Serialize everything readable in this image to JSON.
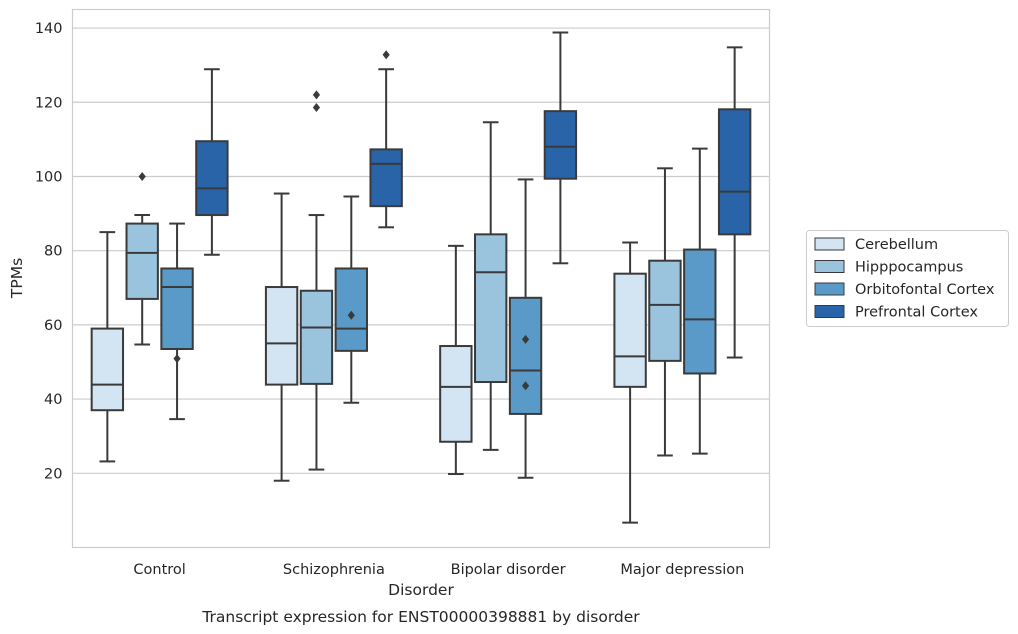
{
  "chart_data": {
    "type": "box",
    "caption": "Transcript expression for ENST00000398881 by disorder",
    "xlabel": "Disorder",
    "ylabel": "TPMs",
    "ylim": [
      0,
      145
    ],
    "yticks": [
      20,
      40,
      60,
      80,
      100,
      120,
      140
    ],
    "grid": "horizontal",
    "legend_placement": "right-center",
    "categories": [
      "Control",
      "Schizophrenia",
      "Bipolar disorder",
      "Major depression"
    ],
    "series": [
      {
        "name": "Cerebellum",
        "color": "#d3e4f3",
        "boxes": [
          {
            "whisker_low": 23.2,
            "q1": 37.0,
            "median": 43.9,
            "q3": 59.0,
            "whisker_high": 85.0,
            "outliers": []
          },
          {
            "whisker_low": 18.0,
            "q1": 43.9,
            "median": 55.0,
            "q3": 70.2,
            "whisker_high": 95.4,
            "outliers": []
          },
          {
            "whisker_low": 19.8,
            "q1": 28.5,
            "median": 43.3,
            "q3": 54.3,
            "whisker_high": 81.3,
            "outliers": []
          },
          {
            "whisker_low": 6.7,
            "q1": 43.3,
            "median": 51.5,
            "q3": 73.8,
            "whisker_high": 82.2,
            "outliers": []
          }
        ]
      },
      {
        "name": "Hipppocampus",
        "color": "#9ac4de",
        "boxes": [
          {
            "whisker_low": 54.7,
            "q1": 67.0,
            "median": 79.4,
            "q3": 87.3,
            "whisker_high": 89.6,
            "outliers": [
              100.0
            ]
          },
          {
            "whisker_low": 21.0,
            "q1": 44.1,
            "median": 59.3,
            "q3": 69.2,
            "whisker_high": 89.6,
            "outliers": [
              118.6,
              122.0
            ]
          },
          {
            "whisker_low": 26.3,
            "q1": 44.6,
            "median": 74.2,
            "q3": 84.4,
            "whisker_high": 114.6,
            "outliers": []
          },
          {
            "whisker_low": 24.8,
            "q1": 50.3,
            "median": 65.4,
            "q3": 77.3,
            "whisker_high": 102.2,
            "outliers": []
          }
        ]
      },
      {
        "name": "Orbitofontal Cortex",
        "color": "#5a9ac9",
        "boxes": [
          {
            "whisker_low": 34.6,
            "q1": 53.5,
            "median": 70.2,
            "q3": 75.2,
            "whisker_high": 87.3,
            "outliers": [
              50.9
            ]
          },
          {
            "whisker_low": 39.0,
            "q1": 53.0,
            "median": 59.0,
            "q3": 75.2,
            "whisker_high": 94.6,
            "outliers": [
              62.6
            ]
          },
          {
            "whisker_low": 18.8,
            "q1": 36.0,
            "median": 47.7,
            "q3": 67.3,
            "whisker_high": 99.2,
            "outliers": [
              43.6,
              56.1
            ]
          },
          {
            "whisker_low": 25.3,
            "q1": 46.9,
            "median": 61.5,
            "q3": 80.3,
            "whisker_high": 107.5,
            "outliers": []
          }
        ]
      },
      {
        "name": "Prefrontal Cortex",
        "color": "#2964a8",
        "boxes": [
          {
            "whisker_low": 78.9,
            "q1": 89.6,
            "median": 96.8,
            "q3": 109.5,
            "whisker_high": 128.9,
            "outliers": []
          },
          {
            "whisker_low": 86.3,
            "q1": 92.0,
            "median": 103.4,
            "q3": 107.3,
            "whisker_high": 128.9,
            "outliers": [
              132.8
            ]
          },
          {
            "whisker_low": 76.6,
            "q1": 99.4,
            "median": 108.0,
            "q3": 117.6,
            "whisker_high": 138.8,
            "outliers": []
          },
          {
            "whisker_low": 51.2,
            "q1": 84.4,
            "median": 95.9,
            "q3": 118.1,
            "whisker_high": 134.8,
            "outliers": []
          }
        ]
      }
    ]
  }
}
